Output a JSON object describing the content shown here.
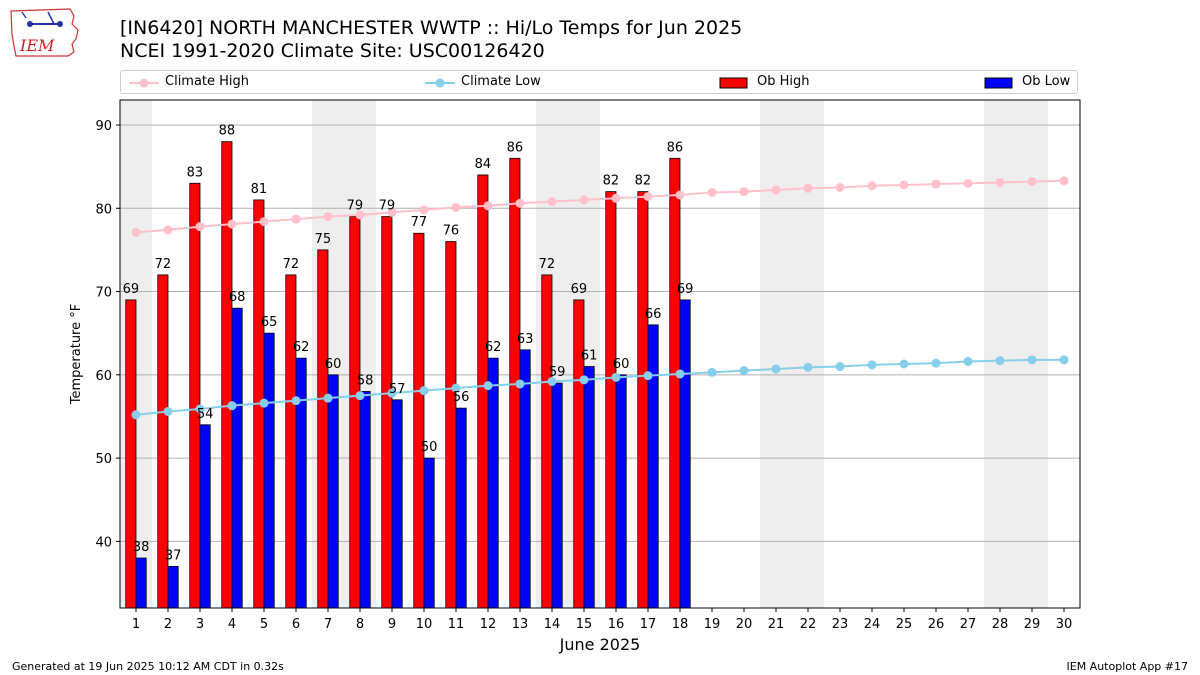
{
  "header": {
    "title_line1": "[IN6420] NORTH MANCHESTER WWTP :: Hi/Lo Temps for Jun 2025",
    "title_line2": "NCEI 1991-2020 Climate Site: USC00126420"
  },
  "logo": {
    "text": "IEM"
  },
  "footer": {
    "left": "Generated at 19 Jun 2025 10:12 AM CDT in 0.32s",
    "right": "IEM Autoplot App #17"
  },
  "legend": {
    "items": [
      {
        "label": "Climate High",
        "kind": "line",
        "color": "#ffc0cb"
      },
      {
        "label": "Climate Low",
        "kind": "line",
        "color": "#87ceeb"
      },
      {
        "label": "Ob High",
        "kind": "bar",
        "color": "#ff0000"
      },
      {
        "label": "Ob Low",
        "kind": "bar",
        "color": "#0000ff"
      }
    ]
  },
  "chart_data": {
    "type": "bar",
    "xlabel": "June 2025",
    "ylabel": "Temperature °F",
    "ylim": [
      32,
      93
    ],
    "yticks": [
      40,
      50,
      60,
      70,
      80,
      90
    ],
    "xlim": [
      0.5,
      30.5
    ],
    "grid": "horizontal",
    "weekend_shading": [
      [
        0.5,
        1.5
      ],
      [
        6.5,
        8.5
      ],
      [
        13.5,
        15.5
      ],
      [
        20.5,
        22.5
      ],
      [
        27.5,
        29.5
      ]
    ],
    "shade_color": "#eeeeee",
    "days": [
      1,
      2,
      3,
      4,
      5,
      6,
      7,
      8,
      9,
      10,
      11,
      12,
      13,
      14,
      15,
      16,
      17,
      18,
      19,
      20,
      21,
      22,
      23,
      24,
      25,
      26,
      27,
      28,
      29,
      30
    ],
    "series": [
      {
        "name": "Ob High",
        "kind": "bar",
        "color": "#ff0000",
        "values": [
          69,
          72,
          83,
          88,
          81,
          72,
          75,
          79,
          79,
          77,
          76,
          84,
          86,
          72,
          69,
          82,
          82,
          86
        ]
      },
      {
        "name": "Ob Low",
        "kind": "bar",
        "color": "#0000ff",
        "values": [
          38,
          37,
          54,
          68,
          65,
          62,
          60,
          58,
          57,
          50,
          56,
          62,
          63,
          59,
          61,
          60,
          66,
          69
        ]
      },
      {
        "name": "Climate High",
        "kind": "line",
        "color": "#ffc0cb",
        "values": [
          77.1,
          77.4,
          77.8,
          78.1,
          78.4,
          78.7,
          79.0,
          79.2,
          79.5,
          79.8,
          80.1,
          80.3,
          80.6,
          80.8,
          81.0,
          81.2,
          81.4,
          81.6,
          81.9,
          82.0,
          82.2,
          82.4,
          82.5,
          82.7,
          82.8,
          82.9,
          83.0,
          83.1,
          83.2,
          83.3
        ]
      },
      {
        "name": "Climate Low",
        "kind": "line",
        "color": "#87ceeb",
        "values": [
          55.2,
          55.6,
          55.9,
          56.3,
          56.6,
          56.9,
          57.2,
          57.5,
          57.8,
          58.1,
          58.4,
          58.7,
          58.9,
          59.2,
          59.4,
          59.7,
          59.9,
          60.1,
          60.3,
          60.5,
          60.7,
          60.9,
          61.0,
          61.2,
          61.3,
          61.4,
          61.6,
          61.7,
          61.8,
          61.8
        ]
      }
    ]
  }
}
